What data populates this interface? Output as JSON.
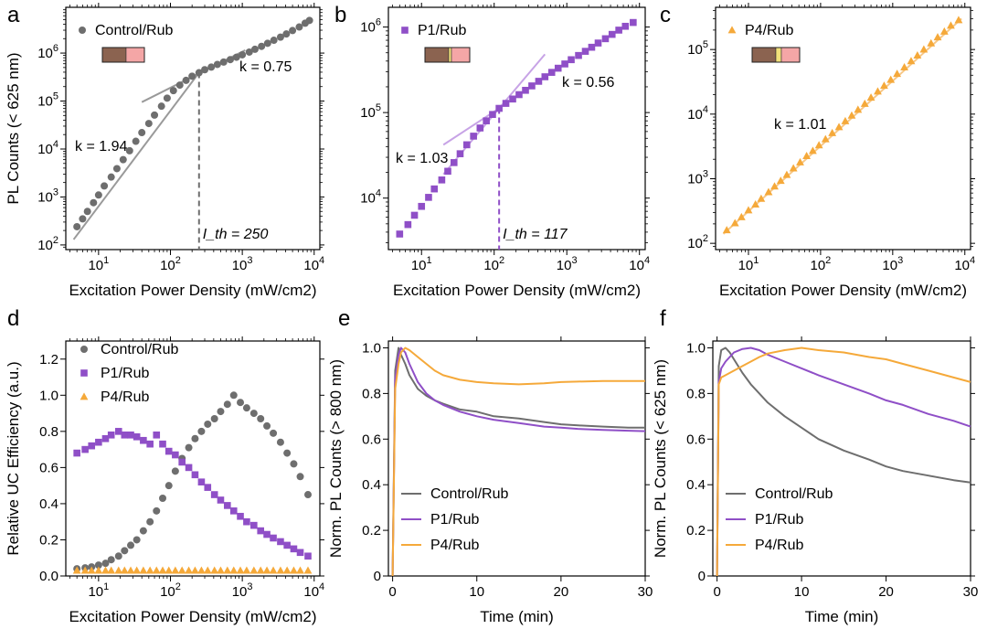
{
  "figure": {
    "title": ""
  },
  "colors": {
    "control": "#6e6e6e",
    "p1": "#8f4fc7",
    "p4": "#f5a93a",
    "fit_control": "#9a9a9a",
    "fit_p1": "#c7a3e6",
    "fit_p4": "#f7c887"
  },
  "chart_data": [
    {
      "panel": "a",
      "type": "scatter",
      "xscale": "log",
      "yscale": "log",
      "xlabel": "Excitation Power Density (mW/cm2)",
      "ylabel": "PL Counts (< 625 nm)",
      "xlim": [
        3.5,
        12000
      ],
      "ylim": [
        80,
        9000000
      ],
      "xticks": [
        10,
        100,
        1000,
        10000
      ],
      "xtick_labels": [
        "10^1",
        "10^2",
        "10^3",
        "10^4"
      ],
      "yticks": [
        100,
        1000,
        10000,
        100000,
        1000000
      ],
      "ytick_labels": [
        "10^2",
        "10^3",
        "10^4",
        "10^5",
        "10^6"
      ],
      "legend": [
        "Control/Rub"
      ],
      "series": [
        {
          "name": "Control/Rub",
          "marker": "circle",
          "x": [
            5,
            6,
            7,
            8.5,
            10,
            12,
            15,
            18,
            22,
            27,
            33,
            40,
            50,
            60,
            75,
            90,
            110,
            135,
            165,
            200,
            250,
            300,
            370,
            450,
            550,
            680,
            830,
            1000,
            1250,
            1500,
            1850,
            2250,
            2750,
            3400,
            4100,
            5000,
            6200,
            7500,
            8600
          ],
          "y": [
            240,
            350,
            500,
            760,
            1100,
            1700,
            2600,
            3900,
            6000,
            9200,
            14500,
            22000,
            34000,
            51000,
            78000,
            115000,
            165000,
            215000,
            270000,
            330000,
            390000,
            450000,
            510000,
            580000,
            650000,
            730000,
            820000,
            920000,
            1050000,
            1200000,
            1380000,
            1600000,
            1850000,
            2150000,
            2500000,
            2950000,
            3500000,
            4200000,
            4800000
          ]
        }
      ],
      "fits": [
        {
          "label": "k = 1.94",
          "x": [
            4.5,
            250
          ],
          "y": [
            130,
            390000
          ]
        },
        {
          "label": "k = 0.75",
          "x": [
            40,
            1100
          ],
          "y": [
            95000,
            1150000
          ]
        }
      ],
      "threshold": {
        "label": "I_th = 250",
        "x": 250
      }
    },
    {
      "panel": "b",
      "type": "scatter",
      "xscale": "log",
      "yscale": "log",
      "xlabel": "Excitation Power Density (mW/cm2)",
      "ylabel": "",
      "xlim": [
        3.5,
        12000
      ],
      "ylim": [
        2500,
        1700000
      ],
      "xticks": [
        10,
        100,
        1000,
        10000
      ],
      "xtick_labels": [
        "10^1",
        "10^2",
        "10^3",
        "10^4"
      ],
      "yticks": [
        10000,
        100000,
        1000000
      ],
      "ytick_labels": [
        "10^4",
        "10^5",
        "10^6"
      ],
      "legend": [
        "P1/Rub"
      ],
      "series": [
        {
          "name": "P1/Rub",
          "marker": "square",
          "x": [
            5,
            6.5,
            8,
            10,
            12.5,
            15,
            19,
            23,
            28,
            34,
            42,
            52,
            64,
            78,
            95,
            117,
            145,
            180,
            220,
            270,
            330,
            410,
            500,
            620,
            760,
            940,
            1150,
            1450,
            1800,
            2200,
            2700,
            3400,
            4200,
            5200,
            6400,
            8200
          ],
          "y": [
            3800,
            4900,
            6300,
            8000,
            10200,
            12800,
            16300,
            20600,
            26000,
            33000,
            42000,
            53000,
            66000,
            80000,
            95000,
            112000,
            128000,
            144000,
            162000,
            182000,
            205000,
            232000,
            262000,
            295000,
            330000,
            370000,
            415000,
            465000,
            520000,
            580000,
            650000,
            730000,
            820000,
            920000,
            1020000,
            1130000
          ]
        }
      ],
      "fits": [
        {
          "label": "k = 1.03",
          "x": [
            20,
            117
          ],
          "y": [
            42000,
            112000
          ]
        },
        {
          "label": "k = 0.56",
          "x": [
            20,
            500
          ],
          "y": [
            19000,
            480000
          ]
        }
      ],
      "threshold": {
        "label": "I_th = 117",
        "x": 117
      }
    },
    {
      "panel": "c",
      "type": "scatter",
      "xscale": "log",
      "yscale": "log",
      "xlabel": "Excitation Power Density (mW/cm2)",
      "ylabel": "",
      "xlim": [
        3.5,
        12000
      ],
      "ylim": [
        80,
        450000
      ],
      "xticks": [
        10,
        100,
        1000,
        10000
      ],
      "xtick_labels": [
        "10^1",
        "10^2",
        "10^3",
        "10^4"
      ],
      "yticks": [
        100,
        1000,
        10000,
        100000
      ],
      "ytick_labels": [
        "10^2",
        "10^3",
        "10^4",
        "10^5"
      ],
      "legend": [
        "P4/Rub"
      ],
      "series": [
        {
          "name": "P4/Rub",
          "marker": "triangle",
          "x": [
            5,
            6.5,
            8,
            10,
            12.5,
            15,
            19,
            23,
            28,
            34,
            42,
            52,
            64,
            78,
            95,
            117,
            145,
            180,
            220,
            270,
            330,
            410,
            500,
            620,
            760,
            940,
            1150,
            1450,
            1800,
            2200,
            2700,
            3400,
            4200,
            5200,
            6400,
            8200
          ],
          "y": [
            160,
            205,
            255,
            325,
            400,
            490,
            620,
            760,
            930,
            1150,
            1450,
            1800,
            2250,
            2700,
            3300,
            4100,
            5100,
            6300,
            7800,
            9500,
            11700,
            14500,
            18000,
            22500,
            27500,
            34000,
            42000,
            53000,
            66000,
            81000,
            100000,
            125000,
            155000,
            190000,
            235000,
            285000
          ]
        }
      ],
      "fits": [
        {
          "label": "k = 1.01",
          "x": [
            4.5,
            9000
          ],
          "y": [
            140,
            300000
          ]
        }
      ]
    },
    {
      "panel": "d",
      "type": "scatter",
      "xscale": "log",
      "yscale": "linear",
      "xlabel": "Excitation Power Density (mW/cm2)",
      "ylabel": "Relative UC Efficiency (a.u.)",
      "xlim": [
        3.5,
        12000
      ],
      "ylim": [
        0,
        1.3
      ],
      "xticks": [
        10,
        100,
        1000,
        10000
      ],
      "xtick_labels": [
        "10^1",
        "10^2",
        "10^3",
        "10^4"
      ],
      "yticks": [
        0,
        0.2,
        0.4,
        0.6,
        0.8,
        1.0,
        1.2
      ],
      "ytick_labels": [
        "0.0",
        "0.2",
        "0.4",
        "0.6",
        "0.8",
        "1.0",
        "1.2"
      ],
      "legend": [
        "Control/Rub",
        "P1/Rub",
        "P4/Rub"
      ],
      "series": [
        {
          "name": "Control/Rub",
          "marker": "circle",
          "x": [
            5,
            6.5,
            8,
            10,
            12.5,
            15,
            19,
            23,
            28,
            34,
            42,
            52,
            64,
            78,
            95,
            117,
            145,
            180,
            220,
            270,
            330,
            410,
            500,
            620,
            760,
            940,
            1150,
            1450,
            1800,
            2200,
            2700,
            3400,
            4200,
            5200,
            6400,
            8200
          ],
          "y": [
            0.04,
            0.045,
            0.05,
            0.06,
            0.07,
            0.09,
            0.11,
            0.14,
            0.17,
            0.2,
            0.25,
            0.3,
            0.36,
            0.43,
            0.5,
            0.58,
            0.65,
            0.71,
            0.76,
            0.8,
            0.84,
            0.87,
            0.91,
            0.95,
            1.0,
            0.96,
            0.93,
            0.9,
            0.87,
            0.83,
            0.79,
            0.74,
            0.68,
            0.62,
            0.55,
            0.45
          ]
        },
        {
          "name": "P1/Rub",
          "marker": "square",
          "x": [
            5,
            6.5,
            8,
            10,
            12.5,
            15,
            19,
            23,
            28,
            34,
            42,
            52,
            64,
            78,
            95,
            117,
            145,
            180,
            220,
            270,
            330,
            410,
            500,
            620,
            760,
            940,
            1150,
            1450,
            1800,
            2200,
            2700,
            3400,
            4200,
            5200,
            6400,
            8200
          ],
          "y": [
            0.68,
            0.7,
            0.72,
            0.74,
            0.76,
            0.78,
            0.8,
            0.78,
            0.78,
            0.77,
            0.75,
            0.73,
            0.78,
            0.73,
            0.69,
            0.67,
            0.63,
            0.6,
            0.56,
            0.52,
            0.49,
            0.45,
            0.42,
            0.39,
            0.36,
            0.33,
            0.3,
            0.28,
            0.25,
            0.23,
            0.21,
            0.19,
            0.17,
            0.15,
            0.13,
            0.11
          ]
        },
        {
          "name": "P4/Rub",
          "marker": "triangle",
          "x": [
            5,
            6.5,
            8,
            10,
            12.5,
            15,
            19,
            23,
            28,
            34,
            42,
            52,
            64,
            78,
            95,
            117,
            145,
            180,
            220,
            270,
            330,
            410,
            500,
            620,
            760,
            940,
            1150,
            1450,
            1800,
            2200,
            2700,
            3400,
            4200,
            5200,
            6400,
            8200
          ],
          "y": [
            0.03,
            0.03,
            0.03,
            0.03,
            0.03,
            0.03,
            0.03,
            0.03,
            0.03,
            0.03,
            0.03,
            0.03,
            0.03,
            0.03,
            0.03,
            0.03,
            0.03,
            0.03,
            0.03,
            0.03,
            0.03,
            0.03,
            0.03,
            0.03,
            0.03,
            0.03,
            0.03,
            0.03,
            0.03,
            0.03,
            0.03,
            0.03,
            0.03,
            0.03,
            0.03,
            0.03
          ]
        }
      ]
    },
    {
      "panel": "e",
      "type": "line",
      "xscale": "linear",
      "yscale": "linear",
      "xlabel": "Time (min)",
      "ylabel": "Norm. PL Counts (> 800 nm)",
      "xlim": [
        -0.5,
        30
      ],
      "ylim": [
        0,
        1.03
      ],
      "xticks": [
        0,
        10,
        20,
        30
      ],
      "xtick_labels": [
        "0",
        "10",
        "20",
        "30"
      ],
      "yticks": [
        0,
        0.2,
        0.4,
        0.6,
        0.8,
        1.0
      ],
      "ytick_labels": [
        "0",
        "0.2",
        "0.4",
        "0.6",
        "0.8",
        "1.0"
      ],
      "legend": [
        "Control/Rub",
        "P1/Rub",
        "P4/Rub"
      ],
      "series": [
        {
          "name": "Control/Rub",
          "x": [
            0,
            0.3,
            0.7,
            1,
            1.5,
            2,
            3,
            4,
            5,
            6,
            8,
            10,
            12,
            15,
            18,
            20,
            22,
            25,
            28,
            30
          ],
          "y": [
            0,
            0.9,
            1.0,
            0.97,
            0.93,
            0.88,
            0.82,
            0.79,
            0.77,
            0.755,
            0.73,
            0.72,
            0.7,
            0.69,
            0.675,
            0.665,
            0.66,
            0.655,
            0.65,
            0.65
          ]
        },
        {
          "name": "P1/Rub",
          "x": [
            0,
            0.3,
            0.7,
            1,
            1.5,
            2,
            3,
            4,
            5,
            6,
            8,
            10,
            12,
            15,
            18,
            20,
            22,
            25,
            28,
            30
          ],
          "y": [
            0,
            0.86,
            0.97,
            1.0,
            0.98,
            0.93,
            0.85,
            0.8,
            0.77,
            0.75,
            0.72,
            0.7,
            0.685,
            0.67,
            0.655,
            0.65,
            0.645,
            0.64,
            0.637,
            0.635
          ]
        },
        {
          "name": "P4/Rub",
          "x": [
            0,
            0.3,
            0.7,
            1,
            1.5,
            2,
            3,
            4,
            5,
            6,
            8,
            10,
            12,
            15,
            18,
            20,
            22,
            25,
            28,
            30
          ],
          "y": [
            0,
            0.82,
            0.93,
            0.98,
            1.0,
            0.99,
            0.96,
            0.93,
            0.9,
            0.88,
            0.86,
            0.85,
            0.845,
            0.84,
            0.845,
            0.85,
            0.852,
            0.855,
            0.855,
            0.855
          ]
        }
      ]
    },
    {
      "panel": "f",
      "type": "line",
      "xscale": "linear",
      "yscale": "linear",
      "xlabel": "Time (min)",
      "ylabel": "Norm. PL Counts (< 625 nm)",
      "xlim": [
        -0.5,
        30
      ],
      "ylim": [
        0,
        1.03
      ],
      "xticks": [
        0,
        10,
        20,
        30
      ],
      "xtick_labels": [
        "0",
        "10",
        "20",
        "30"
      ],
      "yticks": [
        0,
        0.2,
        0.4,
        0.6,
        0.8,
        1.0
      ],
      "ytick_labels": [
        "0",
        "0.2",
        "0.4",
        "0.6",
        "0.8",
        "1.0"
      ],
      "legend": [
        "Control/Rub",
        "P1/Rub",
        "P4/Rub"
      ],
      "series": [
        {
          "name": "Control/Rub",
          "x": [
            0,
            0.2,
            0.5,
            1,
            1.5,
            2,
            3,
            4,
            5,
            6,
            8,
            10,
            12,
            15,
            18,
            20,
            22,
            25,
            28,
            30
          ],
          "y": [
            0,
            0.92,
            0.99,
            1.0,
            0.98,
            0.95,
            0.89,
            0.84,
            0.8,
            0.76,
            0.7,
            0.65,
            0.6,
            0.55,
            0.51,
            0.48,
            0.46,
            0.44,
            0.42,
            0.41
          ]
        },
        {
          "name": "P1/Rub",
          "x": [
            0,
            0.2,
            0.5,
            1,
            2,
            3,
            4,
            5,
            6,
            8,
            10,
            12,
            15,
            18,
            20,
            22,
            25,
            28,
            30
          ],
          "y": [
            0,
            0.85,
            0.91,
            0.94,
            0.98,
            0.995,
            1.0,
            0.99,
            0.97,
            0.94,
            0.91,
            0.88,
            0.84,
            0.8,
            0.77,
            0.75,
            0.71,
            0.68,
            0.655
          ]
        },
        {
          "name": "P4/Rub",
          "x": [
            0,
            0.2,
            0.5,
            1,
            2,
            3,
            4,
            5,
            6,
            8,
            10,
            12,
            15,
            18,
            20,
            22,
            25,
            28,
            30
          ],
          "y": [
            0,
            0.84,
            0.87,
            0.88,
            0.9,
            0.92,
            0.94,
            0.96,
            0.975,
            0.99,
            1.0,
            0.99,
            0.98,
            0.96,
            0.95,
            0.93,
            0.9,
            0.87,
            0.85
          ]
        }
      ]
    }
  ]
}
